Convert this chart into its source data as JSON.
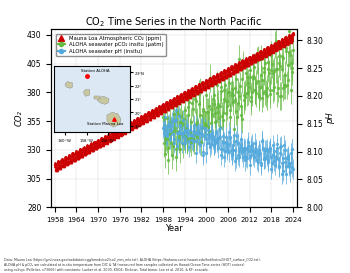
{
  "title": "CO₂ Time Series in the North Pacific",
  "xlabel": "Year",
  "ylabel_left": "CO₂",
  "ylabel_right": "pH",
  "xlim": [
    1957,
    2025
  ],
  "ylim_left": [
    280,
    435
  ],
  "ylim_right": [
    8.0,
    8.32
  ],
  "yticks_left": [
    280,
    305,
    330,
    355,
    380,
    405,
    430
  ],
  "yticks_right": [
    8.0,
    8.05,
    8.1,
    8.15,
    8.2,
    8.25,
    8.3
  ],
  "xticks": [
    1958,
    1964,
    1970,
    1976,
    1982,
    1988,
    1994,
    2000,
    2006,
    2012,
    2018,
    2024
  ],
  "legend_ml": "Mauna Loa Atmospheric CO₂ (ppm)",
  "legend_co2": "ALOHA seawater pCO₂ insitu (μatm)",
  "legend_ph": "ALOHA seawater pH (insitu)",
  "footnote1": "Data: Mauna Loa (https://gml.noaa.gov/webdata/ccgg/trends/co2/co2_mm_mlo.txt). ALOHA (https://hahana.soest.hawaii.edu/hot/hotco2/HOT_surface_CO2.txt).",
  "footnote2": "ALOHA pH & pCO₂ are calculated at in-situ temperature from DIC & TA (measured from samples collected on Hawaii Ocean Time-series (HOT) cruises)",
  "footnote3": "using co2sys (Pelletier, v73606) with constants: Lueker et al. 2000, KSO4: Dickson. Total boron: Lee et al. 2010, & KF: seacarb.",
  "mauna_loa_color": "#cc0000",
  "aloha_co2_color": "#66bb44",
  "aloha_ph_color": "#55aadd",
  "bg_color": "#dce8f4"
}
